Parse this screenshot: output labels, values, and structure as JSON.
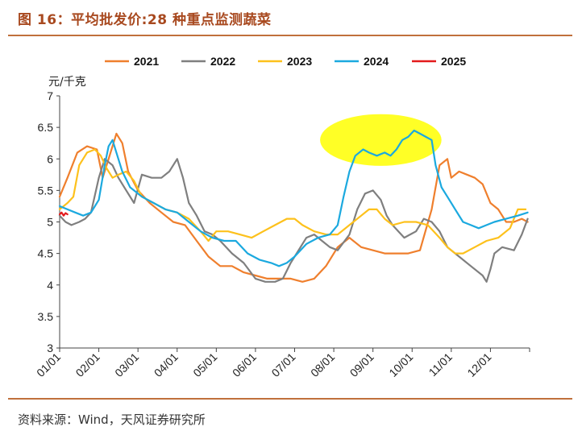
{
  "title": "图 16：平均批发价:28 种重点监测蔬菜",
  "source": "资料来源：Wind，天风证券研究所",
  "chart_data": {
    "type": "line",
    "ylabel": "元/千克",
    "ylim": [
      3,
      7
    ],
    "yticks": [
      3,
      3.5,
      4,
      4.5,
      5,
      5.5,
      6,
      6.5,
      7
    ],
    "ytick_labels": [
      "3",
      "3.5",
      "4",
      "4.5",
      "5",
      "5.5",
      "6",
      "6.5",
      "7"
    ],
    "xlim": [
      1,
      13
    ],
    "xticks": [
      1,
      2,
      3,
      4,
      5,
      6,
      7,
      8,
      9,
      10,
      11,
      12
    ],
    "xtick_labels": [
      "01/01",
      "02/01",
      "03/01",
      "04/01",
      "05/01",
      "06/01",
      "07/01",
      "08/01",
      "09/01",
      "10/01",
      "11/01",
      "12/01"
    ],
    "annotation": {
      "type": "ellipse",
      "color": "#ffff00",
      "cx": 9.2,
      "cy": 6.3,
      "rx": 1.55,
      "ry": 0.41
    },
    "series": [
      {
        "name": "2021",
        "color": "#ef7f2d",
        "x": [
          1.0,
          1.2,
          1.45,
          1.7,
          1.95,
          2.1,
          2.25,
          2.45,
          2.6,
          2.75,
          3.0,
          3.3,
          3.6,
          3.9,
          4.2,
          4.5,
          4.8,
          5.1,
          5.4,
          5.7,
          6.0,
          6.3,
          6.6,
          6.9,
          7.2,
          7.5,
          7.8,
          8.1,
          8.4,
          8.7,
          9.0,
          9.3,
          9.6,
          9.9,
          10.2,
          10.5,
          10.7,
          10.9,
          11.0,
          11.2,
          11.4,
          11.6,
          11.8,
          12.0,
          12.2,
          12.4,
          12.6,
          12.8,
          12.95
        ],
        "y": [
          5.4,
          5.7,
          6.1,
          6.2,
          6.15,
          5.7,
          6.0,
          6.4,
          6.25,
          5.8,
          5.5,
          5.3,
          5.15,
          5.0,
          4.95,
          4.7,
          4.45,
          4.3,
          4.3,
          4.2,
          4.15,
          4.1,
          4.1,
          4.1,
          4.05,
          4.1,
          4.3,
          4.6,
          4.75,
          4.6,
          4.55,
          4.5,
          4.5,
          4.5,
          4.55,
          5.2,
          5.9,
          6.0,
          5.7,
          5.8,
          5.75,
          5.7,
          5.6,
          5.3,
          5.2,
          5.0,
          5.0,
          5.05,
          5.0
        ]
      },
      {
        "name": "2022",
        "color": "#7f7f7f",
        "x": [
          1.0,
          1.15,
          1.3,
          1.5,
          1.65,
          1.8,
          2.0,
          2.15,
          2.35,
          2.5,
          2.7,
          2.9,
          3.1,
          3.35,
          3.6,
          3.8,
          4.0,
          4.15,
          4.3,
          4.5,
          4.7,
          4.9,
          5.1,
          5.4,
          5.7,
          6.0,
          6.25,
          6.5,
          6.7,
          6.9,
          7.1,
          7.3,
          7.5,
          7.7,
          7.9,
          8.1,
          8.4,
          8.6,
          8.8,
          9.0,
          9.2,
          9.35,
          9.5,
          9.65,
          9.8,
          9.95,
          10.1,
          10.3,
          10.5,
          10.7,
          10.9,
          11.2,
          11.5,
          11.8,
          11.9,
          12.0,
          12.1,
          12.3,
          12.6,
          12.8,
          12.95
        ],
        "y": [
          5.1,
          5.0,
          4.95,
          5.0,
          5.05,
          5.15,
          5.7,
          6.0,
          5.9,
          5.7,
          5.5,
          5.3,
          5.75,
          5.7,
          5.7,
          5.8,
          6.0,
          5.7,
          5.3,
          5.1,
          4.85,
          4.8,
          4.7,
          4.5,
          4.35,
          4.1,
          4.05,
          4.05,
          4.1,
          4.35,
          4.55,
          4.75,
          4.8,
          4.7,
          4.6,
          4.55,
          4.8,
          5.2,
          5.45,
          5.5,
          5.35,
          5.1,
          4.95,
          4.85,
          4.75,
          4.8,
          4.85,
          5.05,
          5.0,
          4.85,
          4.6,
          4.45,
          4.3,
          4.15,
          4.05,
          4.25,
          4.5,
          4.6,
          4.55,
          4.8,
          5.05
        ]
      },
      {
        "name": "2023",
        "color": "#fdc11c",
        "x": [
          1.0,
          1.2,
          1.35,
          1.5,
          1.7,
          1.9,
          2.05,
          2.2,
          2.35,
          2.5,
          2.7,
          2.9,
          3.1,
          3.4,
          3.7,
          4.0,
          4.3,
          4.6,
          4.8,
          5.0,
          5.3,
          5.6,
          5.9,
          6.2,
          6.5,
          6.8,
          7.0,
          7.2,
          7.5,
          7.8,
          8.1,
          8.4,
          8.7,
          8.9,
          9.1,
          9.3,
          9.5,
          9.8,
          10.1,
          10.4,
          10.7,
          10.9,
          11.1,
          11.3,
          11.6,
          11.9,
          12.2,
          12.5,
          12.7,
          12.9
        ],
        "y": [
          5.2,
          5.3,
          5.4,
          5.9,
          6.1,
          6.15,
          6.05,
          5.85,
          5.7,
          5.75,
          5.8,
          5.65,
          5.4,
          5.3,
          5.2,
          5.15,
          5.05,
          4.85,
          4.7,
          4.85,
          4.85,
          4.8,
          4.75,
          4.85,
          4.95,
          5.05,
          5.05,
          4.95,
          4.85,
          4.8,
          4.8,
          4.95,
          5.1,
          5.2,
          5.2,
          5.05,
          4.95,
          5.0,
          5.0,
          4.95,
          4.75,
          4.6,
          4.5,
          4.5,
          4.6,
          4.7,
          4.75,
          4.9,
          5.2,
          5.2
        ]
      },
      {
        "name": "2024",
        "color": "#1ba9df",
        "x": [
          1.0,
          1.2,
          1.4,
          1.6,
          1.8,
          2.0,
          2.15,
          2.25,
          2.35,
          2.45,
          2.6,
          2.8,
          3.1,
          3.4,
          3.7,
          4.0,
          4.3,
          4.6,
          4.9,
          5.2,
          5.5,
          5.8,
          6.1,
          6.4,
          6.6,
          6.8,
          7.0,
          7.3,
          7.6,
          7.9,
          8.1,
          8.25,
          8.4,
          8.55,
          8.75,
          8.9,
          9.1,
          9.3,
          9.45,
          9.6,
          9.75,
          9.9,
          10.05,
          10.2,
          10.35,
          10.5,
          10.6,
          10.75,
          10.9,
          11.1,
          11.3,
          11.5,
          11.7,
          11.9,
          12.1,
          12.4,
          12.7,
          12.95
        ],
        "y": [
          5.25,
          5.2,
          5.15,
          5.1,
          5.15,
          5.35,
          5.9,
          6.2,
          6.3,
          6.1,
          5.8,
          5.55,
          5.4,
          5.3,
          5.2,
          5.15,
          5.0,
          4.85,
          4.75,
          4.7,
          4.7,
          4.5,
          4.4,
          4.35,
          4.3,
          4.35,
          4.45,
          4.65,
          4.75,
          4.8,
          4.95,
          5.4,
          5.8,
          6.05,
          6.15,
          6.1,
          6.05,
          6.1,
          6.05,
          6.15,
          6.3,
          6.35,
          6.45,
          6.4,
          6.35,
          6.3,
          5.9,
          5.55,
          5.4,
          5.2,
          5.0,
          4.95,
          4.9,
          4.95,
          5.0,
          5.05,
          5.1,
          5.15
        ]
      },
      {
        "name": "2025",
        "color": "#e31a1c",
        "x": [
          1.0,
          1.05,
          1.1,
          1.15,
          1.2
        ],
        "y": [
          5.12,
          5.15,
          5.1,
          5.14,
          5.12
        ]
      }
    ]
  }
}
